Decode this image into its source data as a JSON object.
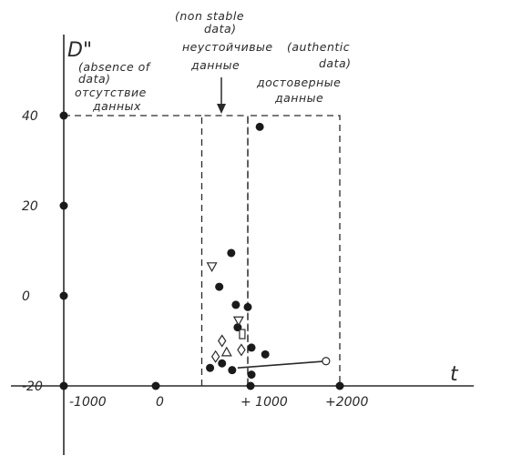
{
  "chart_data": {
    "type": "scatter",
    "title": "",
    "xlabel": "t",
    "ylabel": "D\"",
    "xlim": [
      -1000,
      2000
    ],
    "ylim": [
      -20,
      40
    ],
    "grid": false,
    "x_ticks": [
      {
        "value": -1000,
        "label": "-1000"
      },
      {
        "value": 0,
        "label": "0"
      },
      {
        "value": 1000,
        "label": "+ 1000"
      },
      {
        "value": 2000,
        "label": "+2000"
      }
    ],
    "y_ticks": [
      {
        "value": 40,
        "label": "40"
      },
      {
        "value": 20,
        "label": "20"
      },
      {
        "value": 0,
        "label": "0"
      },
      {
        "value": -20,
        "label": "-20"
      }
    ],
    "annotations": {
      "absence": [
        "(absence of",
        "data)",
        "отсутствие",
        "данных"
      ],
      "nonstable": [
        "(non stable",
        "data)",
        "неустойчивые",
        "данные"
      ],
      "authentic": [
        "(authentic",
        "data)",
        "достоверные",
        "данные"
      ]
    },
    "regions": {
      "absence_top": 40,
      "nonstable_x": [
        500,
        1000
      ],
      "authentic_x": [
        1000,
        2000
      ],
      "top": 40
    },
    "series": [
      {
        "marker": "filled-circle",
        "points": [
          [
            1130,
            37.5
          ],
          [
            820,
            9.5
          ],
          [
            690,
            2.0
          ],
          [
            870,
            -2.0
          ],
          [
            1000,
            -2.5
          ],
          [
            890,
            -7.0
          ],
          [
            1040,
            -11.5
          ],
          [
            1190,
            -13.0
          ],
          [
            590,
            -16.0
          ],
          [
            720,
            -15.0
          ],
          [
            830,
            -16.5
          ],
          [
            1040,
            -17.5
          ],
          [
            -1000,
            40
          ],
          [
            -1000,
            20
          ],
          [
            -1000,
            0
          ],
          [
            -1000,
            -20
          ],
          [
            0,
            -20
          ],
          [
            1030,
            -20
          ],
          [
            2000,
            -20
          ]
        ]
      },
      {
        "marker": "open-triangle-down",
        "points": [
          [
            610,
            6.5
          ],
          [
            900,
            -5.5
          ]
        ]
      },
      {
        "marker": "open-triangle-up",
        "points": [
          [
            770,
            -12.5
          ]
        ]
      },
      {
        "marker": "open-diamond",
        "points": [
          [
            720,
            -10.0
          ],
          [
            930,
            -12.0
          ],
          [
            650,
            -13.5
          ]
        ]
      },
      {
        "marker": "open-rect",
        "points": [
          [
            940,
            -8.5
          ]
        ]
      },
      {
        "marker": "open-circle",
        "points": [
          [
            1850,
            -14.5
          ]
        ]
      }
    ],
    "trend_line": {
      "x": [
        890,
        1850
      ],
      "y": [
        -16.0,
        -14.5
      ]
    }
  }
}
